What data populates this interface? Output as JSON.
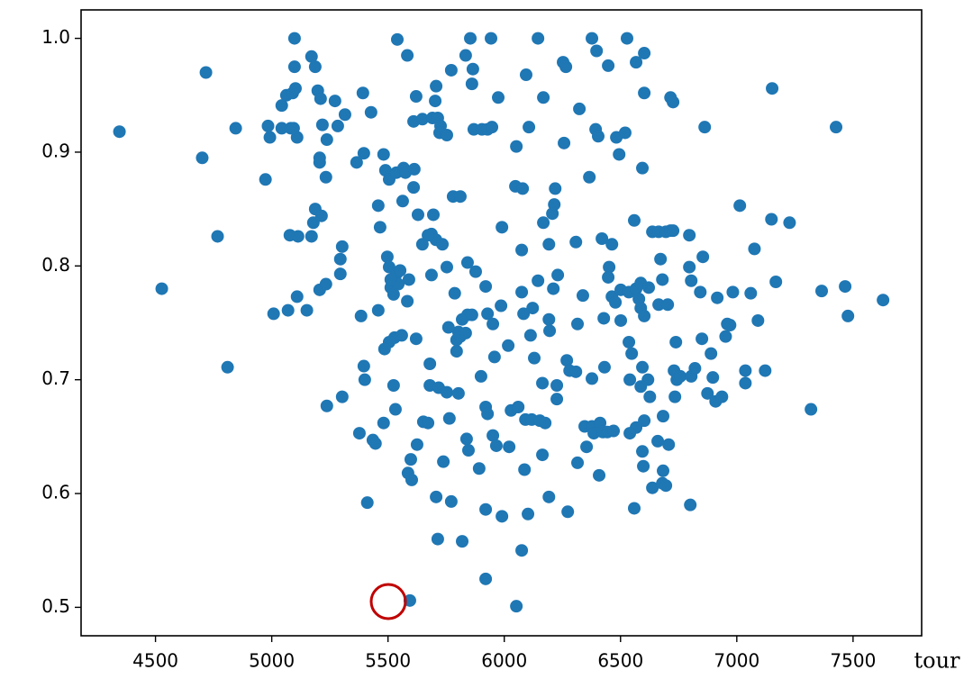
{
  "chart_data": {
    "type": "scatter",
    "xlabel": "tour",
    "color": "#1f77b4",
    "xlim": [
      4180,
      7795
    ],
    "ylim": [
      0.475,
      1.025
    ],
    "xticks": [
      4500,
      5000,
      5500,
      6000,
      6500,
      7000,
      7500
    ],
    "yticks": [
      0.5,
      0.6,
      0.7,
      0.8,
      0.9,
      {
        "value": 1,
        "label": "1.0"
      }
    ],
    "x": [
      4345,
      4527,
      4717,
      4701,
      4767,
      4810,
      4845,
      4973,
      4984,
      4992,
      5043,
      5082,
      5043,
      5063,
      5090,
      5098,
      5098,
      5102,
      5109,
      5094,
      5008,
      5070,
      5109,
      5151,
      5078,
      5113,
      5171,
      5179,
      5187,
      5214,
      5171,
      5187,
      5198,
      5210,
      5218,
      5237,
      5272,
      5284,
      5315,
      5206,
      5206,
      5233,
      5206,
      5233,
      5295,
      5303,
      5295,
      5237,
      5303,
      5365,
      5396,
      5392,
      5427,
      5384,
      5458,
      5396,
      5400,
      5377,
      5411,
      5435,
      5446,
      5458,
      5466,
      5481,
      5489,
      5505,
      5536,
      5567,
      5575,
      5613,
      5610,
      5563,
      5497,
      5505,
      5512,
      5536,
      5552,
      5544,
      5512,
      5524,
      5590,
      5583,
      5528,
      5505,
      5485,
      5559,
      5621,
      5524,
      5532,
      5481,
      5540,
      5583,
      5610,
      5621,
      5648,
      5691,
      5703,
      5707,
      5714,
      5726,
      5722,
      5753,
      5772,
      5834,
      5854,
      5865,
      5861,
      5869,
      5943,
      5974,
      5904,
      5928,
      5947,
      5629,
      5687,
      5648,
      5706,
      5672,
      5695,
      5734,
      5687,
      5753,
      5780,
      5811,
      5842,
      5877,
      5787,
      5920,
      5842,
      5819,
      5803,
      5760,
      5795,
      5811,
      5834,
      5795,
      5861,
      5928,
      5951,
      5680,
      5680,
      5718,
      5753,
      5803,
      5652,
      5672,
      5764,
      5738,
      5625,
      5598,
      5586,
      5602,
      5707,
      5772,
      5714,
      5819,
      5920,
      6052,
      5594,
      5900,
      5920,
      5928,
      5951,
      5966,
      5838,
      5846,
      5892,
      5920,
      5990,
      6075,
      6102,
      6087,
      6021,
      6029,
      6060,
      6091,
      6118,
      6153,
      6176,
      6164,
      6192,
      6273,
      6164,
      6129,
      6113,
      6017,
      5986,
      6075,
      6083,
      6122,
      6192,
      6195,
      6211,
      6145,
      6230,
      6075,
      6192,
      6168,
      6207,
      6215,
      6219,
      5990,
      6048,
      6079,
      6052,
      6094,
      6145,
      6106,
      6168,
      6253,
      6265,
      6257,
      6323,
      6308,
      6338,
      6315,
      6269,
      6281,
      6308,
      6226,
      6226,
      6315,
      6346,
      6377,
      6385,
      6354,
      6408,
      6412,
      6424,
      6443,
      6470,
      6377,
      6431,
      6428,
      6420,
      6463,
      6366,
      6393,
      6404,
      6377,
      6397,
      6447,
      6528,
      6482,
      6520,
      6494,
      6451,
      6447,
      6463,
      6501,
      6536,
      6567,
      6478,
      6501,
      6536,
      6548,
      6540,
      6594,
      6618,
      6587,
      6626,
      6602,
      6567,
      6540,
      6594,
      6598,
      6559,
      6637,
      6660,
      6683,
      6707,
      6683,
      6680,
      6695,
      6730,
      6742,
      6757,
      6734,
      6738,
      6804,
      6820,
      6800,
      6559,
      6579,
      6587,
      6602,
      6587,
      6621,
      6637,
      6664,
      6695,
      6715,
      6726,
      6672,
      6680,
      6664,
      6703,
      6796,
      6796,
      6843,
      6804,
      6854,
      6850,
      6889,
      6897,
      6874,
      6909,
      6936,
      6952,
      6971,
      6959,
      6916,
      6983,
      7060,
      7091,
      7037,
      7037,
      7122,
      7076,
      7013,
      7149,
      7227,
      7168,
      7319,
      7365,
      7466,
      7478,
      7629,
      7427,
      7152,
      6862,
      6602,
      6594,
      6567,
      6602,
      6715,
      6726,
      5958
    ],
    "values": [
      0.918,
      0.78,
      0.97,
      0.895,
      0.826,
      0.711,
      0.921,
      0.876,
      0.923,
      0.913,
      0.921,
      0.921,
      0.941,
      0.95,
      0.952,
      1.0,
      0.975,
      0.956,
      0.913,
      0.921,
      0.758,
      0.761,
      0.773,
      0.761,
      0.827,
      0.826,
      0.826,
      0.838,
      0.85,
      0.844,
      0.984,
      0.975,
      0.954,
      0.947,
      0.924,
      0.911,
      0.945,
      0.923,
      0.933,
      0.891,
      0.895,
      0.878,
      0.779,
      0.784,
      0.793,
      0.817,
      0.806,
      0.677,
      0.685,
      0.891,
      0.899,
      0.952,
      0.935,
      0.756,
      0.761,
      0.712,
      0.7,
      0.653,
      0.592,
      0.647,
      0.644,
      0.853,
      0.834,
      0.898,
      0.884,
      0.876,
      0.882,
      0.886,
      0.882,
      0.885,
      0.869,
      0.857,
      0.808,
      0.799,
      0.781,
      0.793,
      0.796,
      0.784,
      0.788,
      0.775,
      0.788,
      0.769,
      0.737,
      0.733,
      0.727,
      0.739,
      0.736,
      0.695,
      0.674,
      0.662,
      0.999,
      0.985,
      0.927,
      0.949,
      0.929,
      0.93,
      0.945,
      0.958,
      0.93,
      0.923,
      0.917,
      0.915,
      0.972,
      0.985,
      1.0,
      0.973,
      0.96,
      0.92,
      1.0,
      0.948,
      0.92,
      0.92,
      0.922,
      0.845,
      0.828,
      0.819,
      0.823,
      0.827,
      0.845,
      0.819,
      0.792,
      0.799,
      0.861,
      0.861,
      0.803,
      0.795,
      0.776,
      0.782,
      0.757,
      0.753,
      0.742,
      0.746,
      0.735,
      0.738,
      0.741,
      0.725,
      0.757,
      0.758,
      0.749,
      0.714,
      0.695,
      0.693,
      0.689,
      0.688,
      0.663,
      0.662,
      0.666,
      0.628,
      0.643,
      0.63,
      0.618,
      0.612,
      0.597,
      0.593,
      0.56,
      0.558,
      0.525,
      0.501,
      0.506,
      0.703,
      0.676,
      0.67,
      0.651,
      0.642,
      0.648,
      0.638,
      0.622,
      0.586,
      0.58,
      0.55,
      0.582,
      0.621,
      0.641,
      0.673,
      0.676,
      0.665,
      0.665,
      0.664,
      0.662,
      0.634,
      0.597,
      0.584,
      0.697,
      0.719,
      0.739,
      0.73,
      0.765,
      0.777,
      0.758,
      0.763,
      0.753,
      0.743,
      0.78,
      0.787,
      0.792,
      0.814,
      0.819,
      0.838,
      0.846,
      0.854,
      0.868,
      0.834,
      0.87,
      0.868,
      0.905,
      0.968,
      1.0,
      0.922,
      0.948,
      0.979,
      0.975,
      0.908,
      0.938,
      0.821,
      0.774,
      0.749,
      0.717,
      0.708,
      0.707,
      0.695,
      0.683,
      0.627,
      0.659,
      0.659,
      0.653,
      0.641,
      0.616,
      0.662,
      0.654,
      0.654,
      0.655,
      0.701,
      0.711,
      0.754,
      0.824,
      0.819,
      0.878,
      0.92,
      0.914,
      1.0,
      0.989,
      0.976,
      1.0,
      0.913,
      0.917,
      0.898,
      0.799,
      0.79,
      0.773,
      0.779,
      0.777,
      0.78,
      0.768,
      0.752,
      0.733,
      0.723,
      0.7,
      0.711,
      0.7,
      0.694,
      0.685,
      0.664,
      0.658,
      0.653,
      0.637,
      0.624,
      0.587,
      0.605,
      0.646,
      0.668,
      0.643,
      0.62,
      0.609,
      0.607,
      0.708,
      0.7,
      0.703,
      0.685,
      0.733,
      0.703,
      0.71,
      0.59,
      0.84,
      0.771,
      0.763,
      0.756,
      0.785,
      0.781,
      0.83,
      0.83,
      0.83,
      0.831,
      0.831,
      0.806,
      0.788,
      0.766,
      0.766,
      0.827,
      0.799,
      0.777,
      0.787,
      0.808,
      0.736,
      0.723,
      0.702,
      0.688,
      0.681,
      0.685,
      0.738,
      0.748,
      0.749,
      0.772,
      0.777,
      0.776,
      0.752,
      0.708,
      0.697,
      0.708,
      0.815,
      0.853,
      0.841,
      0.838,
      0.786,
      0.674,
      0.778,
      0.782,
      0.756,
      0.77,
      0.922,
      0.956,
      0.922,
      0.952,
      0.886,
      0.979,
      0.987,
      0.948,
      0.944,
      0.72
    ]
  }
}
